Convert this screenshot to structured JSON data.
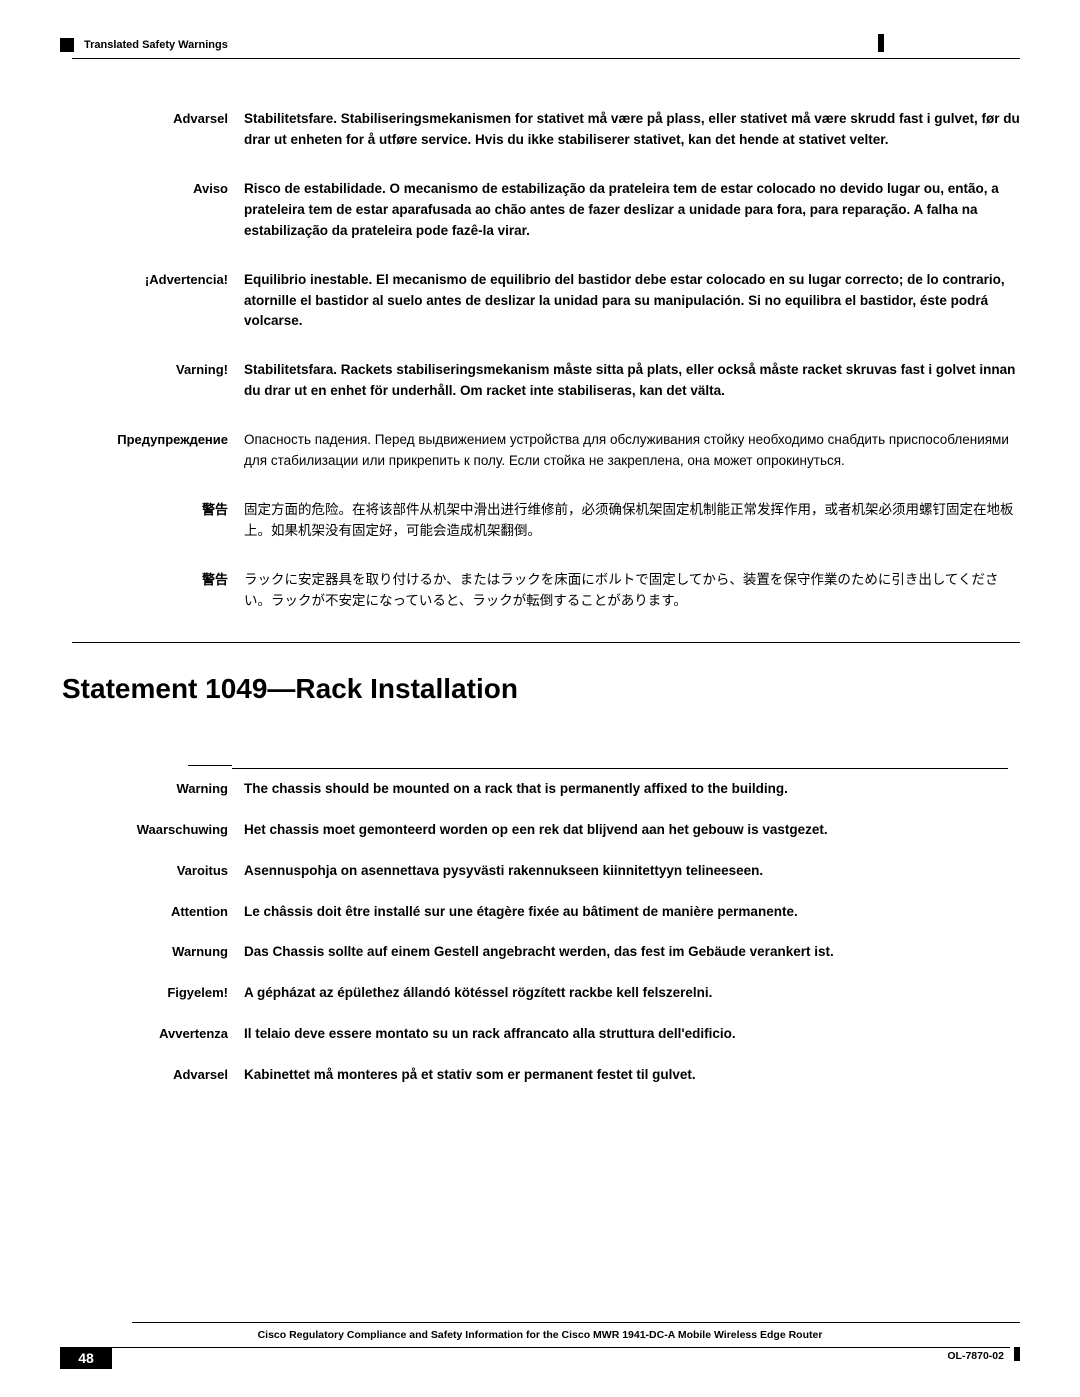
{
  "header": {
    "section_label": "Translated Safety Warnings"
  },
  "warnings_top": [
    {
      "label": "Advarsel",
      "text": "Stabilitetsfare. Stabiliseringsmekanismen for stativet må være på plass, eller stativet må være skrudd fast i gulvet, før du drar ut enheten for å utføre service. Hvis du ikke stabiliserer stativet, kan det hende at stativet velter."
    },
    {
      "label": "Aviso",
      "text": "Risco de estabilidade. O mecanismo de estabilização da prateleira tem de estar colocado no devido lugar ou, então, a prateleira tem de estar aparafusada ao chão antes de fazer deslizar a unidade para fora, para reparação. A falha na estabilização da prateleira pode fazê-la virar."
    },
    {
      "label": "¡Advertencia!",
      "text": "Equilibrio inestable. El mecanismo de equilibrio del bastidor debe estar colocado en su lugar correcto; de lo contrario, atornille el bastidor al suelo antes de deslizar la unidad para su manipulación. Si no equilibra el bastidor, éste podrá volcarse."
    },
    {
      "label": "Varning!",
      "text": "Stabilitetsfara. Rackets stabiliseringsmekanism måste sitta på plats, eller också måste racket skruvas fast i golvet innan du drar ut en enhet för underhåll. Om racket inte stabiliseras, kan det välta."
    },
    {
      "label": "Предупреждение",
      "text": "Опасность падения. Перед выдвижением устройства для обслуживания стойку необходимо снабдить приспособлениями для стабилизации или прикрепить к полу. Если стойка не закреплена, она может опрокинуться.",
      "normal": true
    },
    {
      "label": "警告",
      "text": "固定方面的危险。在将该部件从机架中滑出进行维修前，必须确保机架固定机制能正常发挥作用，或者机架必须用螺钉固定在地板上。如果机架没有固定好，可能会造成机架翻倒。",
      "normal": true
    },
    {
      "label": "警告",
      "text": "ラックに安定器具を取り付けるか、またはラックを床面にボルトで固定してから、装置を保守作業のために引き出してください。ラックが不安定になっていると、ラックが転倒することがあります。",
      "normal": true
    }
  ],
  "section": {
    "title": "Statement 1049—Rack Installation"
  },
  "warnings_bottom": [
    {
      "label": "Warning",
      "text": "The chassis should be mounted on a rack that is permanently affixed to the building."
    },
    {
      "label": "Waarschuwing",
      "text": "Het chassis moet gemonteerd worden op een rek dat blijvend aan het gebouw is vastgezet."
    },
    {
      "label": "Varoitus",
      "text": "Asennuspohja on asennettava pysyvästi rakennukseen kiinnitettyyn telineeseen."
    },
    {
      "label": "Attention",
      "text": "Le châssis doit être installé sur une étagère fixée au bâtiment de manière permanente."
    },
    {
      "label": "Warnung",
      "text": "Das Chassis sollte auf einem Gestell angebracht werden, das fest im Gebäude verankert ist."
    },
    {
      "label": "Figyelem!",
      "text": "A gépházat az épülethez állandó kötéssel rögzített rackbe kell felszerelni."
    },
    {
      "label": "Avvertenza",
      "text": "Il telaio deve essere montato su un rack affrancato alla struttura dell'edificio."
    },
    {
      "label": "Advarsel",
      "text": "Kabinettet må monteres på et stativ som er permanent festet til gulvet."
    }
  ],
  "footer": {
    "doc_title": "Cisco Regulatory Compliance and Safety Information for the Cisco MWR 1941-DC-A Mobile Wireless Edge Router",
    "page_number": "48",
    "doc_id": "OL-7870-02"
  }
}
